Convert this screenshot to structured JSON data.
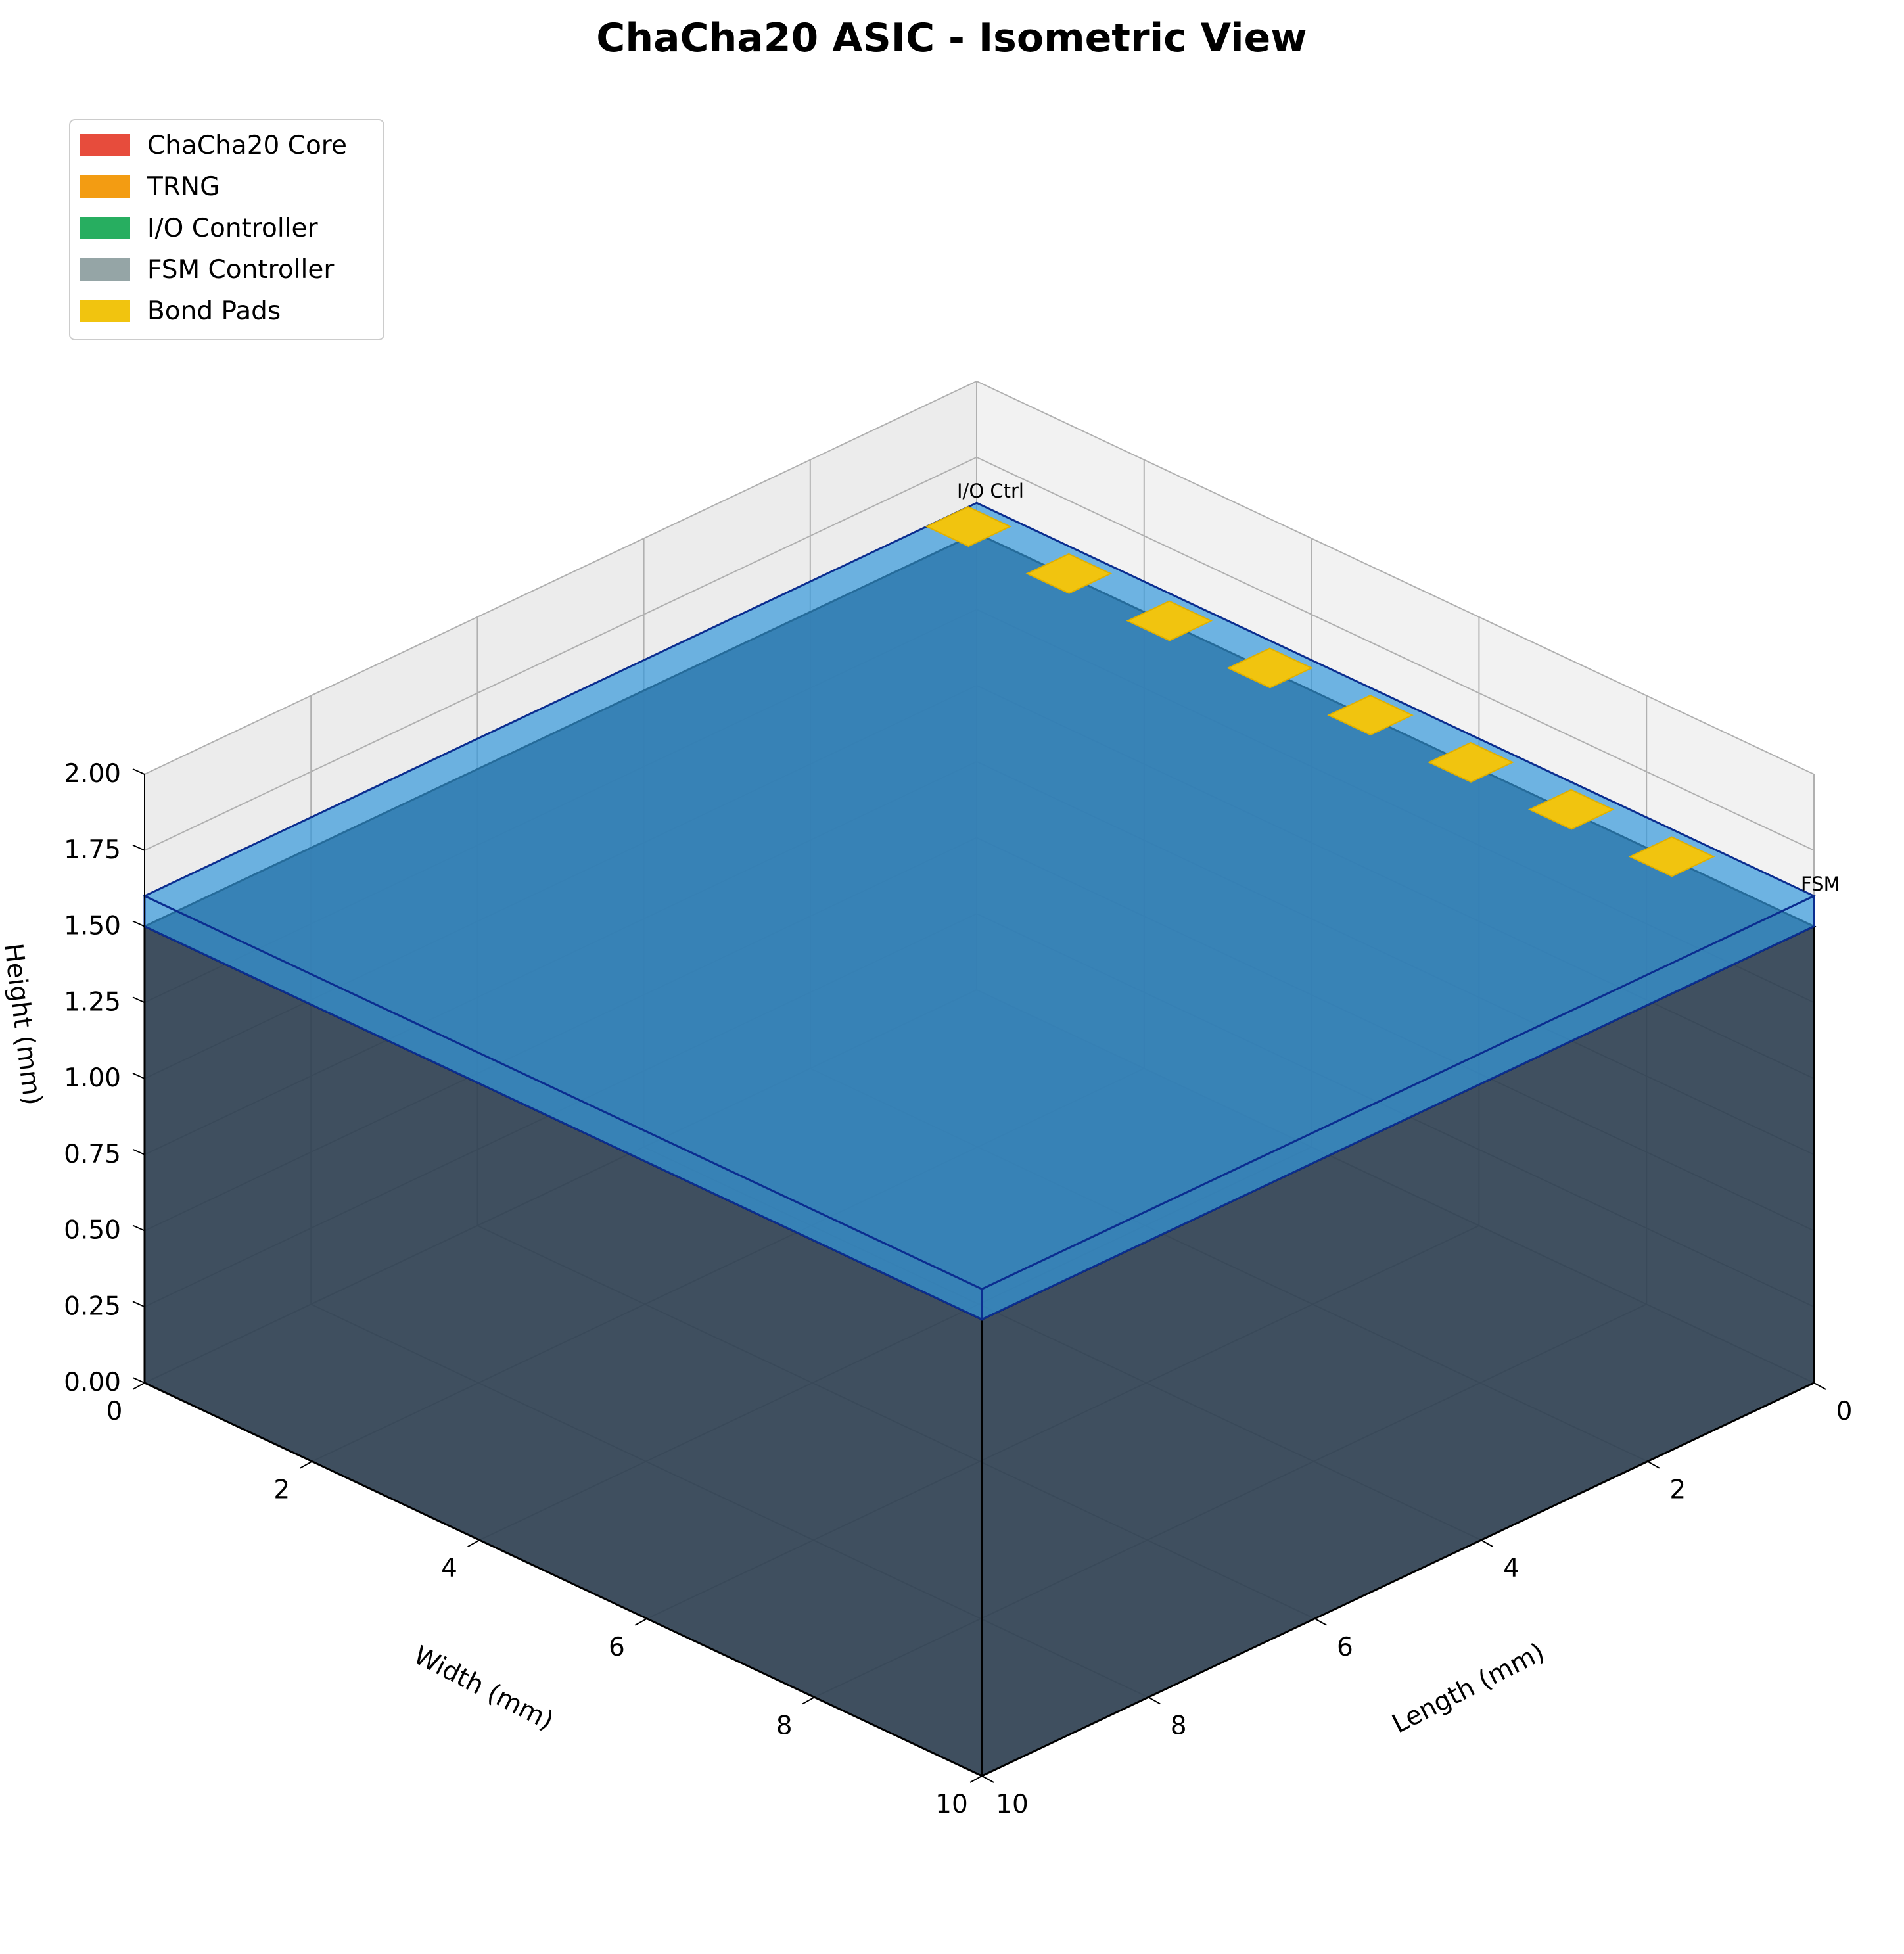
{
  "chart_data": {
    "type": "3d-bar",
    "title": "ChaCha20 ASIC - Isometric View",
    "xlabel": "Length (mm)",
    "ylabel": "Width (mm)",
    "zlabel": "Height (mm)",
    "xlim": [
      0,
      10
    ],
    "ylim": [
      0,
      10
    ],
    "zlim": [
      0,
      2
    ],
    "xticks": [
      "0",
      "2",
      "4",
      "6",
      "8",
      "10"
    ],
    "yticks": [
      "0",
      "2",
      "4",
      "6",
      "8",
      "10"
    ],
    "zticks": [
      "0.00",
      "0.25",
      "0.50",
      "0.75",
      "1.00",
      "1.25",
      "1.50",
      "1.75",
      "2.00"
    ],
    "grid": true,
    "legend_position": "top-left",
    "legend": [
      {
        "label": "ChaCha20 Core",
        "color": "#e74c3c"
      },
      {
        "label": "TRNG",
        "color": "#f39c12"
      },
      {
        "label": "I/O Controller",
        "color": "#27ae60"
      },
      {
        "label": "FSM Controller",
        "color": "#95a5a6"
      },
      {
        "label": "Bond Pads",
        "color": "#f1c40f"
      }
    ],
    "blocks": [
      {
        "name": "Die",
        "x": [
          0,
          10
        ],
        "y": [
          0,
          10
        ],
        "z": [
          0,
          1.5
        ],
        "color": "#2c3e50"
      },
      {
        "name": "Package lid",
        "x": [
          0,
          10
        ],
        "y": [
          0,
          10
        ],
        "z": [
          1.5,
          1.6
        ],
        "color": "#3498db"
      }
    ],
    "bond_pads": {
      "x": 0,
      "y": [
        0,
        1.2,
        2.4,
        3.6,
        4.8,
        6.0,
        7.2,
        8.4
      ],
      "z": 1.6,
      "color": "#f1c40f"
    },
    "annotations": [
      {
        "text": "I/O Ctrl",
        "x": 0,
        "y": 0,
        "z": 1.6
      },
      {
        "text": "FSM",
        "x": 0,
        "y": 10,
        "z": 1.6
      }
    ]
  }
}
